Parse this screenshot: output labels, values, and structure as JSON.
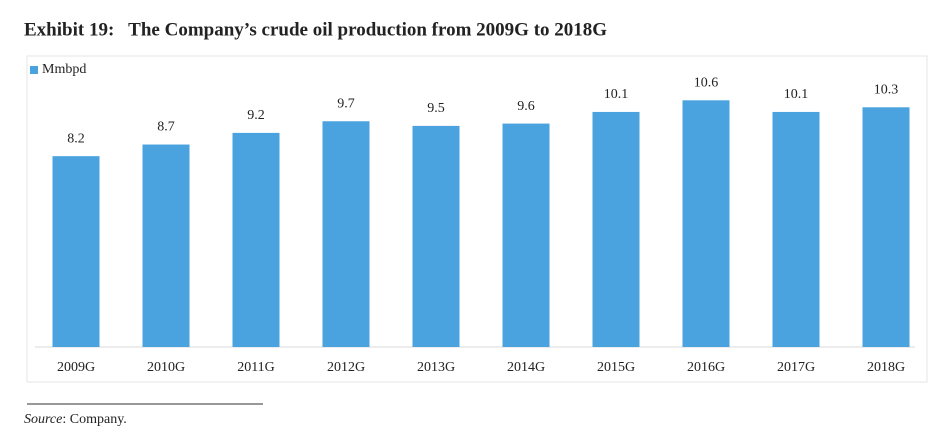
{
  "chart_data": {
    "type": "bar",
    "title": "Exhibit 19:   The Company’s crude oil production from 2009G to 2018G",
    "categories": [
      "2009G",
      "2010G",
      "2011G",
      "2012G",
      "2013G",
      "2014G",
      "2015G",
      "2016G",
      "2017G",
      "2018G"
    ],
    "series": [
      {
        "name": "Mmbpd",
        "color": "#4aa3df",
        "values": [
          8.2,
          8.7,
          9.2,
          9.7,
          9.5,
          9.6,
          10.1,
          10.6,
          10.1,
          10.3
        ]
      }
    ],
    "ylim": [
      0,
      11
    ],
    "legend": "top-left",
    "source_label": "Source",
    "source_text": ": Company."
  }
}
